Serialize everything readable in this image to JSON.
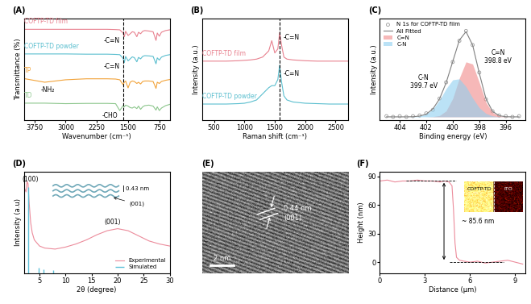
{
  "chart_data": [
    {
      "panel": "(A)",
      "type": "line",
      "x_label": "Wavenumber (cm⁻¹)",
      "y_label": "Transmittance (%)",
      "xlim": [
        4000,
        500
      ],
      "xticks": [
        3750,
        3000,
        2250,
        1500,
        750
      ],
      "ylim": [
        0.3,
        4.45
      ],
      "tick_labels": "x",
      "vline": 1620,
      "x": [
        4000,
        3500,
        3000,
        2500,
        2000,
        1800,
        1700,
        1620,
        1590,
        1560,
        1500,
        1450,
        1400,
        1350,
        1290,
        1250,
        1200,
        1150,
        1100,
        1000,
        900,
        830,
        800,
        750,
        700,
        600,
        500
      ],
      "series": [
        {
          "name": "COFTP-TD film",
          "color": "#e8818f",
          "values": [
            4.0,
            4.0,
            4.0,
            4.0,
            4.0,
            3.99,
            3.98,
            3.85,
            3.7,
            3.92,
            3.75,
            3.82,
            3.9,
            3.88,
            3.7,
            3.88,
            3.82,
            3.92,
            3.95,
            3.93,
            3.9,
            3.55,
            3.85,
            3.72,
            3.88,
            3.95,
            3.98
          ]
        },
        {
          "name": "COFTP-TD powder",
          "color": "#5bbfcf",
          "values": [
            3.0,
            3.0,
            3.0,
            2.99,
            2.99,
            2.98,
            2.97,
            2.82,
            2.65,
            2.9,
            2.72,
            2.8,
            2.88,
            2.85,
            2.68,
            2.86,
            2.8,
            2.9,
            2.93,
            2.92,
            2.9,
            2.6,
            2.84,
            2.75,
            2.87,
            2.94,
            2.97
          ]
        },
        {
          "name": "TP",
          "color": "#f2a33a",
          "values": [
            2.0,
            1.85,
            1.95,
            1.99,
            1.99,
            1.98,
            1.95,
            1.75,
            1.85,
            1.9,
            1.62,
            1.85,
            1.9,
            1.88,
            1.8,
            1.85,
            1.78,
            1.88,
            1.9,
            1.9,
            1.88,
            1.6,
            1.85,
            1.8,
            1.88,
            1.93,
            1.96
          ]
        },
        {
          "name": "TD",
          "color": "#8cc68c",
          "values": [
            1.0,
            1.0,
            0.98,
            0.99,
            0.99,
            0.98,
            0.7,
            0.9,
            0.85,
            0.92,
            0.88,
            0.82,
            0.8,
            0.85,
            0.78,
            0.88,
            0.75,
            0.85,
            0.9,
            0.92,
            0.88,
            0.72,
            0.85,
            0.7,
            0.8,
            0.9,
            0.95
          ]
        }
      ],
      "annotations": [
        {
          "text": "-C=N",
          "x": 1700,
          "y": 3.55
        },
        {
          "text": "-C=N",
          "x": 1700,
          "y": 2.5
        },
        {
          "text": "-NH₂",
          "x": 3250,
          "y": 1.55
        },
        {
          "text": "-CHO",
          "x": 1750,
          "y": 0.5
        }
      ]
    },
    {
      "panel": "(B)",
      "type": "line",
      "x_label": "Raman shift (cm⁻¹)",
      "y_label": "Intensity (a.u.)",
      "xlim": [
        300,
        2700
      ],
      "xticks": [
        500,
        1000,
        1500,
        2000,
        2500
      ],
      "ylim": [
        0.6,
        3.1
      ],
      "tick_labels": "x",
      "vline": 1580,
      "x": [
        300,
        500,
        700,
        900,
        1000,
        1100,
        1200,
        1300,
        1400,
        1450,
        1500,
        1550,
        1580,
        1610,
        1650,
        1700,
        1800,
        2000,
        2200,
        2400,
        2700
      ],
      "series": [
        {
          "name": "COFTP-TD film",
          "color": "#e8818f",
          "values": [
            2.05,
            2.05,
            2.05,
            2.06,
            2.07,
            2.08,
            2.1,
            2.15,
            2.3,
            2.55,
            2.25,
            2.35,
            2.75,
            2.45,
            2.15,
            2.1,
            2.08,
            2.06,
            2.05,
            2.05,
            2.05
          ]
        },
        {
          "name": "COFTP-TD powder",
          "color": "#5bbfcf",
          "values": [
            1.0,
            1.0,
            1.0,
            1.01,
            1.02,
            1.05,
            1.1,
            1.25,
            1.4,
            1.45,
            1.45,
            1.6,
            1.95,
            1.55,
            1.2,
            1.1,
            1.05,
            1.02,
            1.01,
            1.0,
            1.0
          ]
        }
      ],
      "annotations": [
        {
          "text": "-C=N",
          "x": 1640,
          "y": 2.62
        },
        {
          "text": "-C=N",
          "x": 1640,
          "y": 1.75
        }
      ]
    },
    {
      "panel": "(C)",
      "type": "line",
      "x_label": "Binding energy (eV)",
      "y_label": "Intensity (a.u.)",
      "xlim": [
        405.5,
        394.5
      ],
      "xticks": [
        404,
        402,
        400,
        398,
        396
      ],
      "ylim": [
        -0.05,
        1.4
      ],
      "tick_labels": "x",
      "legend": "upper left",
      "x": [
        405,
        404.5,
        404,
        403.5,
        403,
        402.5,
        402,
        401.5,
        401,
        400.5,
        400,
        399.5,
        399,
        398.5,
        398,
        397.5,
        397,
        396.5,
        396,
        395.5,
        395
      ],
      "series": [
        {
          "name": "N 1s for COFTP-TD film",
          "type": "scatter",
          "color": "#9a9a9a",
          "values": [
            0.01,
            0.0,
            0.01,
            0.0,
            0.01,
            0.02,
            0.05,
            0.1,
            0.26,
            0.49,
            0.78,
            1.08,
            1.22,
            1.02,
            0.63,
            0.25,
            0.08,
            0.02,
            0.01,
            0.0,
            0.01
          ]
        },
        {
          "name": "All Fitted",
          "type": "line",
          "color": "#7f7f7f",
          "values": [
            0,
            0,
            0,
            0,
            0.002,
            0.011,
            0.039,
            0.112,
            0.254,
            0.484,
            0.786,
            1.089,
            1.21,
            1.018,
            0.62,
            0.259,
            0.078,
            0.016,
            0.002,
            0,
            0
          ]
        },
        {
          "name": "C=N",
          "type": "area",
          "color": "#f08a8a",
          "values": [
            0,
            0,
            0,
            0,
            0,
            0,
            0,
            0.003,
            0.018,
            0.084,
            0.26,
            0.55,
            0.78,
            0.75,
            0.49,
            0.21,
            0.064,
            0.013,
            0.002,
            0,
            0
          ]
        },
        {
          "name": "C-N",
          "type": "area",
          "color": "#8fd0f0",
          "values": [
            0,
            0,
            0,
            0,
            0.002,
            0.011,
            0.039,
            0.109,
            0.236,
            0.4,
            0.526,
            0.539,
            0.43,
            0.268,
            0.13,
            0.049,
            0.014,
            0.003,
            0,
            0,
            0
          ]
        }
      ],
      "annotations": [
        {
          "text": "C=N\n398.8 eV",
          "x": 396.6,
          "y": 0.85
        },
        {
          "text": "C-N\n399.7 eV",
          "x": 402.2,
          "y": 0.5
        }
      ]
    },
    {
      "panel": "(D)",
      "type": "line",
      "x_label": "2θ (degree)",
      "y_label": "Intensity (a.u)",
      "xlim": [
        2,
        30
      ],
      "xticks": [
        5,
        10,
        15,
        20,
        25,
        30
      ],
      "ylim": [
        0,
        1.0
      ],
      "tick_labels": "x",
      "legend": "lower right",
      "series": [
        {
          "name": "Experimental",
          "type": "line",
          "color": "#ec8b9b",
          "x": [
            2.0,
            2.4,
            2.6,
            2.8,
            3.0,
            3.3,
            3.6,
            4,
            5,
            6,
            8,
            10,
            12,
            14,
            16,
            18,
            20,
            22,
            24,
            26,
            28,
            30
          ],
          "values": [
            0.85,
            0.8,
            0.9,
            0.88,
            0.7,
            0.5,
            0.4,
            0.33,
            0.27,
            0.25,
            0.24,
            0.26,
            0.29,
            0.33,
            0.38,
            0.42,
            0.44,
            0.42,
            0.37,
            0.32,
            0.29,
            0.27
          ]
        },
        {
          "name": "Simulated",
          "type": "stem",
          "color": "#5cc0d8",
          "x": [
            2.85,
            4.9,
            5.7,
            7.6
          ],
          "values": [
            0.85,
            0.06,
            0.04,
            0.03
          ]
        }
      ],
      "annotations": [
        {
          "text": "(100)",
          "x": 3.2,
          "y": 0.92
        },
        {
          "text": "(001)",
          "x": 19,
          "y": 0.5
        }
      ],
      "inset_labels": [
        "0.43 nm",
        "(001)"
      ]
    },
    {
      "panel": "(E)",
      "type": "image",
      "labels": [
        "0.44 nm",
        "(001)"
      ],
      "scale_bar": "2 nm"
    },
    {
      "panel": "(F)",
      "type": "line",
      "x_label": "Distance (μm)",
      "y_label": "Height (nm)",
      "xlim": [
        0,
        9.7
      ],
      "xticks": [
        0,
        3,
        6,
        9
      ],
      "ylim": [
        -12,
        95
      ],
      "yticks": [
        0,
        30,
        60,
        90
      ],
      "series": [
        {
          "name": "Height",
          "color": "#ec8b9b",
          "x": [
            0,
            0.5,
            1,
            1.5,
            2,
            2.5,
            3,
            3.5,
            4,
            4.3,
            4.6,
            4.8,
            4.9,
            5.0,
            5.1,
            5.3,
            5.6,
            6,
            6.5,
            7,
            7.5,
            8,
            8.5,
            9,
            9.5
          ],
          "values": [
            85,
            86,
            84,
            85,
            85,
            86,
            85,
            85,
            84,
            85,
            84,
            80,
            55,
            20,
            5,
            2,
            1,
            0,
            1,
            -1,
            0,
            1,
            2,
            0,
            -2
          ]
        }
      ],
      "levels": [
        85.6,
        0
      ],
      "measure_label": "~ 85.6 nm",
      "inset_labels": [
        "COFTP-TD",
        "ITO"
      ]
    }
  ]
}
